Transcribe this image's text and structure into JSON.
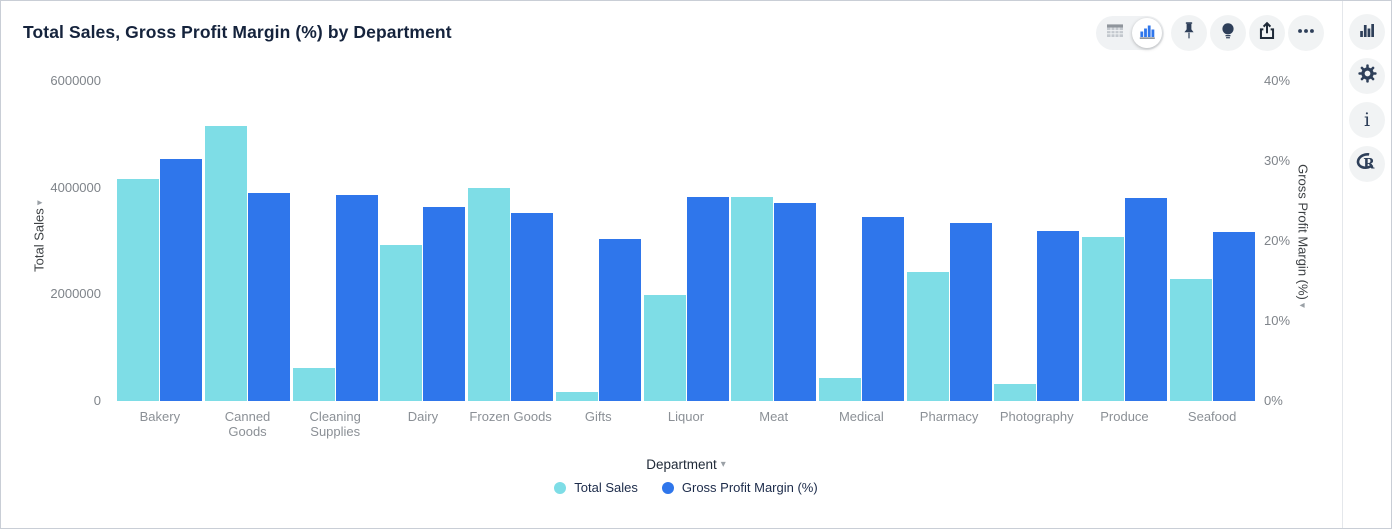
{
  "header": {
    "title": "Total Sales, Gross Profit Margin (%) by Department"
  },
  "toolbar": {
    "view_toggle": {
      "options": [
        "table-view",
        "chart-view"
      ],
      "selected": "chart-view"
    },
    "icons": [
      "pin-icon",
      "lightbulb-icon",
      "export-icon",
      "more-options-icon"
    ]
  },
  "right_rail": {
    "icons": [
      "chart-type-icon",
      "settings-gear-icon",
      "info-icon",
      "r-logo-icon"
    ],
    "info_glyph": "i"
  },
  "colors": {
    "series_total_sales": "#7eddE6",
    "series_gpm": "#2f76eb",
    "title_text": "#15233c",
    "tick_text": "#7f848a",
    "icon_dark": "#2e3f59"
  },
  "chart_data": {
    "type": "bar",
    "title": "Total Sales, Gross Profit Margin (%) by Department",
    "categories": [
      "Bakery",
      "Canned Goods",
      "Cleaning Supplies",
      "Dairy",
      "Frozen Goods",
      "Gifts",
      "Liquor",
      "Meat",
      "Medical",
      "Pharmacy",
      "Photography",
      "Produce",
      "Seafood"
    ],
    "series": [
      {
        "name": "Total Sales",
        "axis": "left",
        "color": "#7edde6",
        "values": [
          4170000,
          5160000,
          620000,
          2930000,
          4000000,
          170000,
          1980000,
          3830000,
          430000,
          2420000,
          320000,
          3070000,
          2280000
        ]
      },
      {
        "name": "Gross Profit Margin (%)",
        "axis": "right",
        "color": "#2f76eb",
        "values": [
          30.2,
          26.0,
          25.8,
          24.3,
          23.5,
          20.2,
          25.5,
          24.8,
          23.0,
          22.3,
          21.3,
          25.4,
          21.1
        ]
      }
    ],
    "left_axis": {
      "title": "Total Sales",
      "ticks": [
        "0",
        "2000000",
        "4000000",
        "6000000"
      ],
      "min": 0,
      "max": 6000000
    },
    "right_axis": {
      "title": "Gross Profit Margin (%)",
      "ticks": [
        "0%",
        "10%",
        "20%",
        "30%",
        "40%"
      ],
      "min": 0,
      "max": 40
    },
    "xlabel": "Department",
    "grid": false,
    "legend_position": "bottom"
  }
}
